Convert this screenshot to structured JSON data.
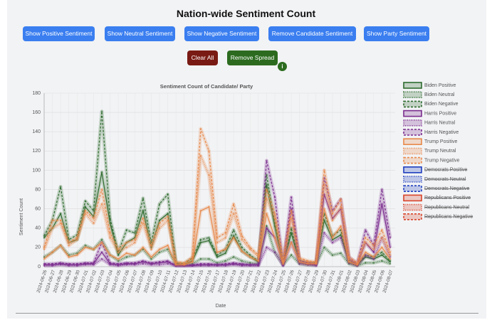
{
  "page": {
    "title": "Nation-wide Sentiment Count",
    "buttons": [
      "Show Positive Sentiment",
      "Show Neutral Sentiment",
      "Show Negative Sentiment",
      "Remove Candidate Sentiment",
      "Show Party Sentiment"
    ],
    "clear": "Clear All",
    "spread": "Remove Spread",
    "info": "i"
  },
  "chart_data": {
    "type": "line",
    "title": "Sentiment Count of Candidate/ Party",
    "x_label": "Date",
    "y_label": "Sentiment Count",
    "categories": [
      "2024-06-26",
      "2024-06-27",
      "2024-06-28",
      "2024-06-29",
      "2024-06-30",
      "2024-07-01",
      "2024-07-02",
      "2024-07-03",
      "2024-07-04",
      "2024-07-05",
      "2024-07-06",
      "2024-07-07",
      "2024-07-08",
      "2024-07-09",
      "2024-07-10",
      "2024-07-11",
      "2024-07-12",
      "2024-07-13",
      "2024-07-14",
      "2024-07-15",
      "2024-07-16",
      "2024-07-17",
      "2024-07-18",
      "2024-07-19",
      "2024-07-20",
      "2024-07-21",
      "2024-07-22",
      "2024-07-23",
      "2024-07-24",
      "2024-07-25",
      "2024-07-26",
      "2024-07-27",
      "2024-07-28",
      "2024-07-29",
      "2024-07-30",
      "2024-07-31",
      "2024-08-01",
      "2024-08-02",
      "2024-08-03",
      "2024-08-04",
      "2024-08-05",
      "2024-08-06",
      "2024-08-07"
    ],
    "ylim": [
      0,
      180
    ],
    "yticks": [
      0,
      20,
      40,
      60,
      80,
      100,
      120,
      140,
      160,
      180
    ],
    "grid": true,
    "series": [
      {
        "name": "Biden Positive",
        "color": "#2e6b2e",
        "style": "solid",
        "values": [
          30,
          40,
          55,
          25,
          28,
          62,
          52,
          98,
          45,
          12,
          25,
          30,
          58,
          20,
          48,
          55,
          3,
          2,
          6,
          25,
          27,
          10,
          14,
          32,
          16,
          10,
          5,
          85,
          42,
          3,
          35,
          5,
          3,
          3,
          48,
          28,
          33,
          5,
          2,
          10,
          8,
          12,
          5
        ]
      },
      {
        "name": "Biden Neutral",
        "color": "#2e6b2e",
        "style": "dotted",
        "values": [
          10,
          15,
          22,
          12,
          14,
          22,
          18,
          28,
          12,
          6,
          10,
          12,
          18,
          8,
          15,
          18,
          2,
          2,
          3,
          8,
          8,
          4,
          6,
          10,
          6,
          4,
          3,
          42,
          15,
          2,
          12,
          3,
          2,
          2,
          20,
          12,
          14,
          3,
          1,
          4,
          4,
          6,
          3
        ]
      },
      {
        "name": "Biden Negative",
        "color": "#2e6b2e",
        "style": "dashed",
        "values": [
          32,
          48,
          83,
          28,
          33,
          68,
          58,
          161,
          50,
          15,
          38,
          35,
          71,
          25,
          65,
          75,
          4,
          3,
          9,
          28,
          30,
          12,
          18,
          38,
          20,
          12,
          6,
          95,
          45,
          4,
          40,
          6,
          4,
          4,
          55,
          32,
          38,
          6,
          2,
          12,
          10,
          15,
          6
        ]
      },
      {
        "name": "Harris Positive",
        "color": "#7b2d8e",
        "style": "solid",
        "values": [
          2,
          2,
          3,
          2,
          2,
          3,
          3,
          15,
          3,
          2,
          3,
          3,
          5,
          3,
          4,
          5,
          1,
          1,
          1,
          2,
          2,
          2,
          2,
          3,
          2,
          2,
          2,
          40,
          30,
          2,
          60,
          5,
          3,
          2,
          75,
          50,
          60,
          8,
          2,
          25,
          15,
          65,
          20
        ]
      },
      {
        "name": "Harris Neutral",
        "color": "#7b2d8e",
        "style": "dotted",
        "values": [
          1,
          1,
          2,
          1,
          1,
          2,
          2,
          8,
          2,
          1,
          2,
          2,
          3,
          2,
          2,
          3,
          1,
          1,
          1,
          1,
          1,
          1,
          1,
          2,
          1,
          1,
          1,
          20,
          15,
          1,
          25,
          3,
          2,
          1,
          35,
          25,
          30,
          4,
          1,
          12,
          8,
          30,
          10
        ]
      },
      {
        "name": "Harris Negative",
        "color": "#7b2d8e",
        "style": "dashed",
        "values": [
          3,
          3,
          4,
          3,
          3,
          4,
          4,
          25,
          4,
          3,
          4,
          4,
          6,
          4,
          5,
          6,
          1,
          1,
          2,
          3,
          3,
          2,
          3,
          4,
          3,
          2,
          2,
          110,
          72,
          3,
          72,
          6,
          4,
          3,
          92,
          58,
          70,
          10,
          3,
          38,
          22,
          80,
          30
        ]
      },
      {
        "name": "Trump Positive",
        "color": "#e8894a",
        "style": "solid",
        "values": [
          8,
          15,
          22,
          10,
          12,
          20,
          18,
          25,
          12,
          8,
          14,
          12,
          20,
          10,
          18,
          22,
          2,
          2,
          5,
          58,
          62,
          15,
          18,
          30,
          16,
          10,
          6,
          55,
          30,
          3,
          25,
          5,
          3,
          3,
          60,
          30,
          42,
          5,
          2,
          15,
          10,
          20,
          8
        ]
      },
      {
        "name": "Trump Neutral",
        "color": "#e8894a",
        "style": "dotted",
        "values": [
          18,
          40,
          45,
          22,
          28,
          55,
          45,
          65,
          30,
          15,
          20,
          25,
          45,
          18,
          40,
          48,
          4,
          3,
          8,
          115,
          95,
          25,
          30,
          55,
          28,
          18,
          10,
          70,
          50,
          5,
          50,
          8,
          5,
          4,
          85,
          48,
          62,
          8,
          3,
          25,
          18,
          30,
          12
        ]
      },
      {
        "name": "Trump Negative",
        "color": "#e8894a",
        "style": "dashed",
        "values": [
          20,
          48,
          48,
          25,
          30,
          58,
          50,
          80,
          35,
          18,
          25,
          28,
          50,
          22,
          45,
          52,
          5,
          4,
          10,
          143,
          120,
          30,
          35,
          65,
          32,
          20,
          12,
          80,
          55,
          6,
          58,
          9,
          6,
          5,
          100,
          55,
          70,
          10,
          4,
          30,
          22,
          38,
          15
        ]
      },
      {
        "name": "Democrats Positive",
        "color": "#1f3fbf",
        "style": "solid",
        "hidden": true
      },
      {
        "name": "Democrats Neutral",
        "color": "#1f3fbf",
        "style": "dotted",
        "hidden": true
      },
      {
        "name": "Democrats Negative",
        "color": "#1f3fbf",
        "style": "dashed",
        "hidden": true
      },
      {
        "name": "Republicans Positive",
        "color": "#d9452b",
        "style": "solid",
        "hidden": true
      },
      {
        "name": "Republicans Neutral",
        "color": "#d9452b",
        "style": "dotted",
        "hidden": true
      },
      {
        "name": "Republicans Negative",
        "color": "#d9452b",
        "style": "dashed",
        "hidden": true
      }
    ]
  }
}
